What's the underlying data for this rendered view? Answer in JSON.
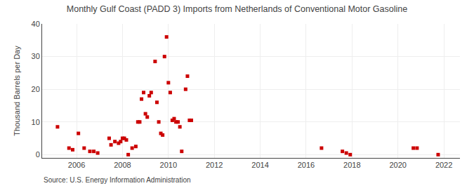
{
  "chart_data": {
    "type": "scatter",
    "title": "Monthly Gulf Coast (PADD 3) Imports from Netherlands of Conventional Motor Gasoline",
    "ylabel": "Thousand Barrels per Day",
    "annotations": [
      "Source: U.S. Energy Information Administration"
    ],
    "color": "#cc0000",
    "marker": "square",
    "grid": true,
    "xlim": [
      2004.5,
      2022.7
    ],
    "ylim": [
      -1,
      40
    ],
    "xticks": [
      2006,
      2008,
      2010,
      2012,
      2014,
      2016,
      2018,
      2020,
      2022
    ],
    "yticks": [
      0,
      10,
      20,
      30,
      40
    ],
    "x": [
      2005.17,
      2005.67,
      2005.83,
      2006.08,
      2006.33,
      2006.58,
      2006.75,
      2006.92,
      2007.42,
      2007.5,
      2007.67,
      2007.83,
      2007.92,
      2008.0,
      2008.08,
      2008.17,
      2008.25,
      2008.42,
      2008.58,
      2008.67,
      2008.75,
      2008.83,
      2008.92,
      2009.0,
      2009.08,
      2009.17,
      2009.25,
      2009.42,
      2009.5,
      2009.58,
      2009.67,
      2009.75,
      2009.83,
      2009.92,
      2010.0,
      2010.08,
      2010.17,
      2010.25,
      2010.33,
      2010.42,
      2010.5,
      2010.58,
      2010.75,
      2010.83,
      2010.92,
      2011.0,
      2016.67,
      2017.58,
      2017.75,
      2017.92,
      2020.67,
      2020.83,
      2021.75
    ],
    "values": [
      8.5,
      2.0,
      1.5,
      6.5,
      2.0,
      1.0,
      1.0,
      0.5,
      5.0,
      3.0,
      4.0,
      3.5,
      4.0,
      5.0,
      5.0,
      4.5,
      0.0,
      2.0,
      2.5,
      10.0,
      10.0,
      17.0,
      19.0,
      12.5,
      11.5,
      18.0,
      19.0,
      28.5,
      16.0,
      10.0,
      6.5,
      6.0,
      30.0,
      36.0,
      22.0,
      19.0,
      10.5,
      11.0,
      10.0,
      10.0,
      8.5,
      1.0,
      20.0,
      24.0,
      10.5,
      10.5,
      2.0,
      1.0,
      0.5,
      0.0,
      2.0,
      2.0,
      0.0
    ]
  }
}
